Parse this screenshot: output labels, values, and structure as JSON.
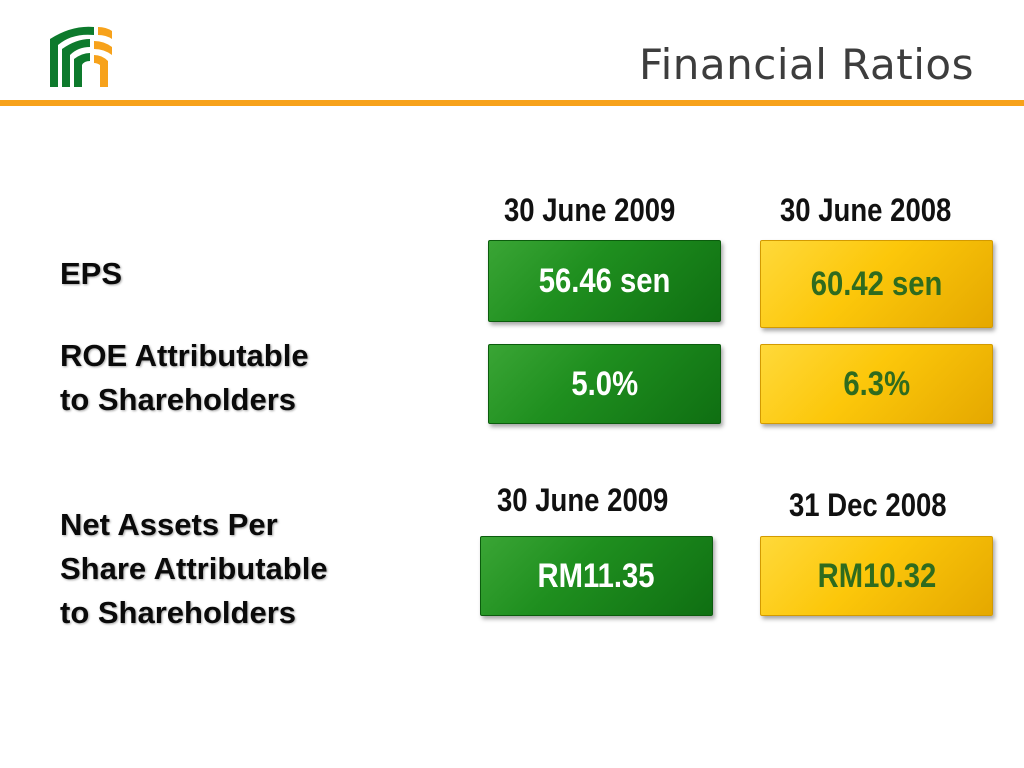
{
  "header": {
    "title": "Financial Ratios",
    "logo_icon": "company-logo-icon",
    "rule_color": "#f7a21b"
  },
  "section1": {
    "col1_heading": "30 June 2009",
    "col2_heading": "30 June 2008",
    "rows": [
      {
        "label": "EPS",
        "value_2009": "56.46 sen",
        "value_2008": "60.42 sen"
      },
      {
        "label_line1": "ROE Attributable",
        "label_line2": "to Shareholders",
        "value_2009": "5.0%",
        "value_2008": "6.3%"
      }
    ]
  },
  "section2": {
    "col1_heading": "30 June 2009",
    "col2_heading": "31 Dec 2008",
    "label_line1": "Net Assets Per",
    "label_line2": "Share Attributable",
    "label_line3": "to Shareholders",
    "value_2009": "RM11.35",
    "value_2008": "RM10.32"
  },
  "colors": {
    "current_box": "#1f8f1f",
    "prior_box": "#fcc70a",
    "prior_text": "#2f6b1e"
  }
}
